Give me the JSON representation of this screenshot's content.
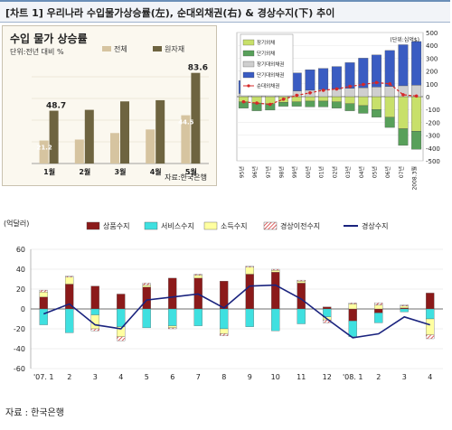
{
  "header": {
    "title": "[차트 1] 우리나라 수입물가상승률(左), 순대외채권(右) & 경상수지(下) 추이"
  },
  "source_note": "자료 : 한국은행",
  "chart_data": [
    {
      "type": "bar",
      "title": "수입 물가 상승률",
      "unit_label": "단위:전년 대비 %",
      "source": "자료:한국은행",
      "categories": [
        "1월",
        "2월",
        "3월",
        "4월",
        "5월"
      ],
      "series": [
        {
          "name": "전체",
          "values": [
            21.2,
            22.1,
            28.1,
            31.4,
            44.5
          ],
          "color": "#d6c4a0"
        },
        {
          "name": "원자재",
          "values": [
            48.7,
            49.5,
            57.3,
            58.4,
            83.6
          ],
          "color": "#6e6440"
        }
      ],
      "data_labels": [
        {
          "series": "전체",
          "category": "1월",
          "text": "21.2"
        },
        {
          "series": "원자재",
          "category": "1월",
          "text": "48.7"
        },
        {
          "series": "전체",
          "category": "5월",
          "text": "44.5"
        },
        {
          "series": "원자재",
          "category": "5월",
          "text": "83.6"
        }
      ],
      "ylim": [
        0,
        90
      ],
      "grid": true,
      "legend": "top-right"
    },
    {
      "type": "bar",
      "unit_label": "(단위:십억$)",
      "categories": [
        "95년",
        "96년",
        "97년",
        "98년",
        "99년",
        "00년",
        "01년",
        "02년",
        "03년",
        "04년",
        "05년",
        "06년",
        "07년",
        "2008.3월"
      ],
      "y_ticks": [
        -500,
        -400,
        -300,
        -200,
        -100,
        0,
        100,
        200,
        300,
        400,
        500
      ],
      "ylim": [
        -500,
        500
      ],
      "series": [
        {
          "name": "장기외채",
          "stack": "neg",
          "color": "#c8e06a",
          "values": [
            -40,
            -50,
            -55,
            -45,
            -40,
            -35,
            -35,
            -40,
            -55,
            -70,
            -100,
            -160,
            -250,
            -270
          ]
        },
        {
          "name": "단기외채",
          "stack": "neg",
          "color": "#58a05a",
          "values": [
            -50,
            -60,
            -50,
            -30,
            -35,
            -45,
            -45,
            -50,
            -55,
            -60,
            -60,
            -80,
            -130,
            -140
          ]
        },
        {
          "name": "장기대외채권",
          "stack": "pos",
          "color": "#cfcfcf",
          "values": [
            25,
            30,
            30,
            40,
            45,
            50,
            55,
            60,
            65,
            70,
            75,
            80,
            85,
            90
          ]
        },
        {
          "name": "단기대외채권",
          "stack": "pos",
          "color": "#3a5cc2",
          "values": [
            100,
            110,
            115,
            120,
            140,
            160,
            165,
            175,
            200,
            230,
            250,
            280,
            320,
            340
          ]
        },
        {
          "name": "순대외채권",
          "type": "line",
          "color": "#d62828",
          "values": [
            -40,
            -50,
            -60,
            -20,
            10,
            30,
            50,
            60,
            80,
            95,
            110,
            100,
            15,
            5
          ]
        }
      ],
      "legend": "top-left"
    },
    {
      "type": "bar",
      "unit_label": "(억달러)",
      "categories": [
        "'07. 1",
        "2",
        "3",
        "4",
        "5",
        "6",
        "7",
        "8",
        "9",
        "10",
        "11",
        "12",
        "'08. 1",
        "2",
        "3",
        "4"
      ],
      "y_ticks": [
        -60,
        -40,
        -20,
        0,
        20,
        40,
        60
      ],
      "ylim": [
        -60,
        60
      ],
      "series": [
        {
          "name": "상품수지",
          "color": "#8b1a1a",
          "values": [
            12,
            25,
            23,
            15,
            22,
            31,
            31,
            28,
            35,
            37,
            26,
            2,
            -12,
            -4,
            1,
            16
          ]
        },
        {
          "name": "서비스수지",
          "color": "#3fe0e0",
          "values": [
            -16,
            -24,
            -6,
            -18,
            -19,
            -17,
            -17,
            -20,
            -18,
            -22,
            -15,
            -8,
            -16,
            -10,
            -3,
            -10
          ]
        },
        {
          "name": "소득수지",
          "color": "#ffffa0",
          "values": [
            5,
            7,
            -14,
            -10,
            2,
            -2,
            3,
            -5,
            7,
            2,
            2,
            -3,
            5,
            4,
            2,
            -16
          ]
        },
        {
          "name": "경상이전수지",
          "color": "#e06060",
          "values": [
            2,
            1,
            -2,
            -4,
            2,
            -1,
            1,
            -2,
            1,
            1,
            1,
            -3,
            1,
            2,
            1,
            -4
          ]
        },
        {
          "name": "경상수지",
          "type": "line",
          "color": "#1a237e",
          "values": [
            -5,
            5,
            -16,
            -20,
            9,
            12,
            15,
            1,
            23,
            24,
            10,
            -10,
            -29,
            -25,
            -8,
            -16
          ]
        }
      ],
      "legend": "top"
    }
  ]
}
